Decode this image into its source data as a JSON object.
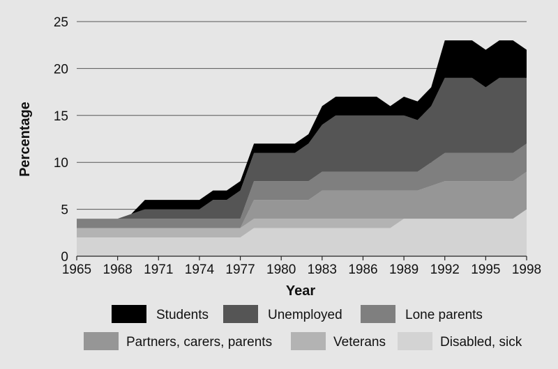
{
  "chart_data": {
    "type": "area",
    "stacked": true,
    "xlabel": "Year",
    "ylabel": "Percentage",
    "xlim": [
      1965,
      1998
    ],
    "ylim": [
      0,
      25
    ],
    "x_ticks": [
      1965,
      1968,
      1971,
      1974,
      1977,
      1980,
      1983,
      1986,
      1989,
      1992,
      1995,
      1998
    ],
    "y_ticks": [
      0,
      5,
      10,
      15,
      20,
      25
    ],
    "grid": "horizontal",
    "legend_position": "bottom",
    "x": [
      1965,
      1966,
      1967,
      1968,
      1969,
      1970,
      1971,
      1972,
      1973,
      1974,
      1975,
      1976,
      1977,
      1978,
      1979,
      1980,
      1981,
      1982,
      1983,
      1984,
      1985,
      1986,
      1987,
      1988,
      1989,
      1990,
      1991,
      1992,
      1993,
      1994,
      1995,
      1996,
      1997,
      1998
    ],
    "series": [
      {
        "name": "Disabled, sick",
        "color": "#d3d3d3",
        "values": [
          2,
          2,
          2,
          2,
          2,
          2,
          2,
          2,
          2,
          2,
          2,
          2,
          2,
          3,
          3,
          3,
          3,
          3,
          3,
          3,
          3,
          3,
          3,
          3,
          4,
          4,
          4,
          4,
          4,
          4,
          4,
          4,
          4,
          5
        ]
      },
      {
        "name": "Veterans",
        "color": "#b3b3b3",
        "values": [
          1,
          1,
          1,
          1,
          1,
          1,
          1,
          1,
          1,
          1,
          1,
          1,
          1,
          1,
          1,
          1,
          1,
          1,
          1,
          1,
          1,
          1,
          1,
          1,
          0,
          0,
          0,
          0,
          0,
          0,
          0,
          0,
          0,
          0
        ]
      },
      {
        "name": "Partners, carers, parents",
        "color": "#969696",
        "values": [
          0,
          0,
          0,
          0,
          0,
          0,
          0,
          0,
          0,
          0,
          0,
          0,
          0,
          2,
          2,
          2,
          2,
          2,
          3,
          3,
          3,
          3,
          3,
          3,
          3,
          3,
          3.5,
          4,
          4,
          4,
          4,
          4,
          4,
          4
        ]
      },
      {
        "name": "Lone parents",
        "color": "#7f7f7f",
        "values": [
          1,
          1,
          1,
          1,
          1,
          1,
          1,
          1,
          1,
          1,
          1,
          1,
          1,
          2,
          2,
          2,
          2,
          2,
          2,
          2,
          2,
          2,
          2,
          2,
          2,
          2,
          2.5,
          3,
          3,
          3,
          3,
          3,
          3,
          3
        ]
      },
      {
        "name": "Unemployed",
        "color": "#555555",
        "values": [
          0,
          0,
          0,
          0,
          0.5,
          1,
          1,
          1,
          1,
          1,
          2,
          2,
          3,
          3,
          3,
          3,
          3,
          4,
          5,
          6,
          6,
          6,
          6,
          6,
          6,
          5.5,
          6,
          8,
          8,
          8,
          7,
          8,
          8,
          7
        ]
      },
      {
        "name": "Students",
        "color": "#000000",
        "values": [
          0,
          0,
          0,
          0,
          0,
          1,
          1,
          1,
          1,
          1,
          1,
          1,
          1,
          1,
          1,
          1,
          1,
          1,
          2,
          2,
          2,
          2,
          2,
          1,
          2,
          2,
          2,
          4,
          4,
          4,
          4,
          4,
          4,
          3
        ]
      }
    ]
  },
  "legend": {
    "row1": [
      "Students",
      "Unemployed",
      "Lone parents"
    ],
    "row2": [
      "Partners, carers, parents",
      "Veterans",
      "Disabled, sick"
    ]
  }
}
